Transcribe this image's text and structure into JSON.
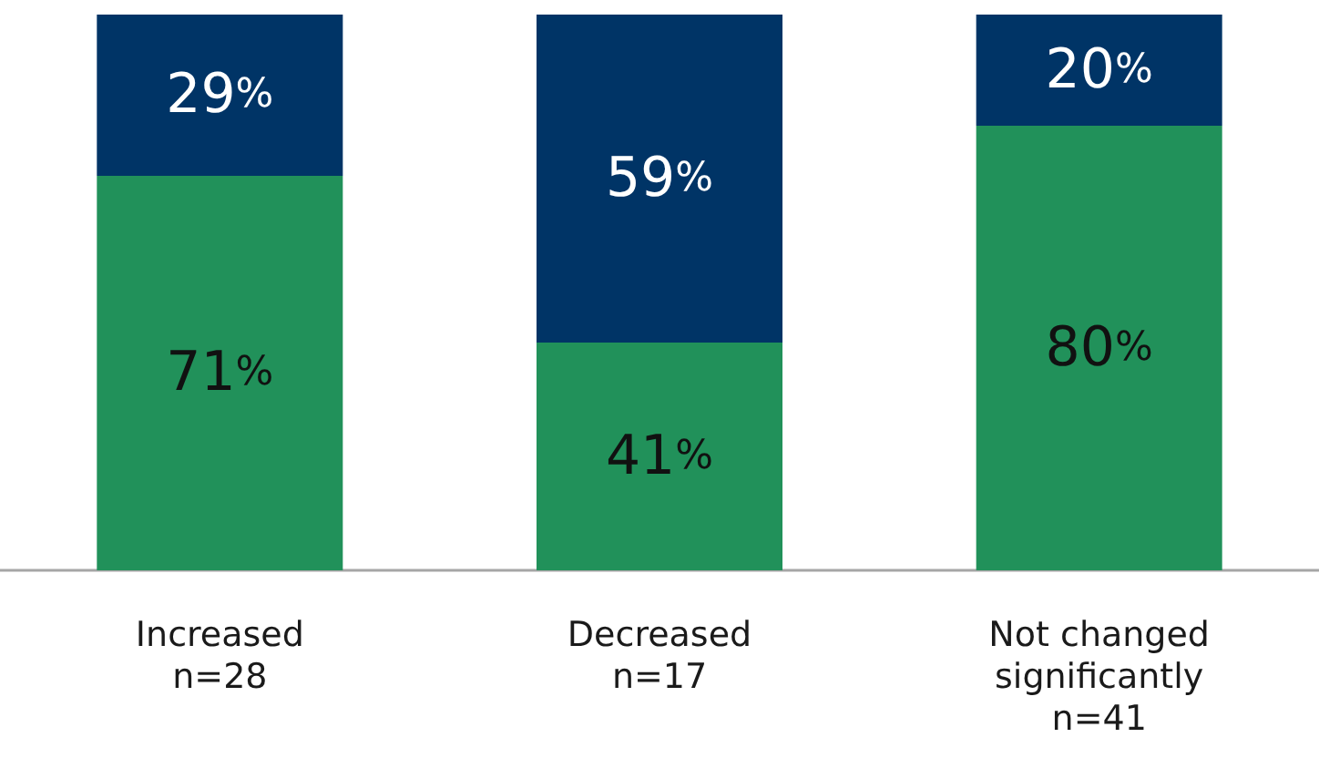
{
  "chart_data": {
    "type": "bar",
    "stacked": true,
    "categories": [
      "Increased\nn=28",
      "Decreased\nn=17",
      "Not changed\nsignificantly\nn=41"
    ],
    "series": [
      {
        "color": "#21915a",
        "values": [
          71,
          41,
          80
        ],
        "value_labels": [
          "71%",
          "41%",
          "80%"
        ]
      },
      {
        "color": "#003466",
        "values": [
          29,
          59,
          20
        ],
        "value_labels": [
          "29%",
          "59%",
          "20%"
        ]
      }
    ],
    "ylim": [
      0,
      100
    ],
    "tick_labels": "x"
  }
}
